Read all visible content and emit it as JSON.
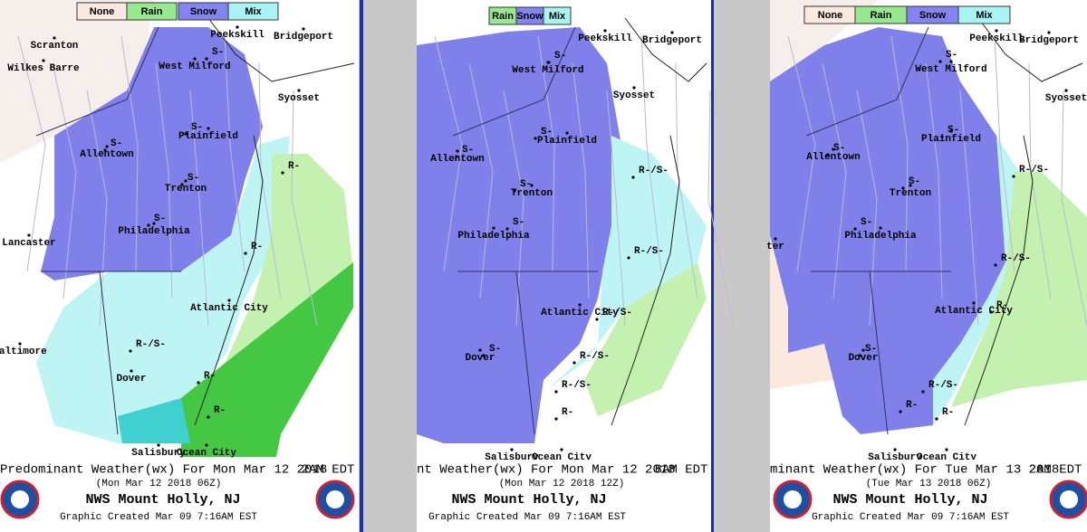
{
  "panels": [
    {
      "legend": [
        "None",
        "Rain",
        "Snow",
        "Mix"
      ],
      "cities": [
        "Scranton",
        "Wilkes Barre",
        "Peekskill",
        "Bridgeport",
        "West Milford",
        "Syosset",
        "Plainfield",
        "Allentown",
        "Trenton",
        "Lancaster",
        "Philadelphia",
        "Atlantic City",
        "Baltimore",
        "Dover",
        "Salisbury",
        "Ocean City"
      ],
      "wx_labels": [
        "S-",
        "S-",
        "S-",
        "S-",
        "S-",
        "R-",
        "R-",
        "R-/S-",
        "R-",
        "R-"
      ],
      "footer": {
        "title": "Predominant Weather(wx) For Mon Mar 12 2018",
        "time": "2AM EDT",
        "utc": "(Mon Mar 12 2018 06Z)",
        "office": "NWS Mount Holly, NJ",
        "created": "Graphic Created Mar 09  7:16AM EST"
      }
    },
    {
      "legend": [
        "Rain",
        "Snow",
        "Mix"
      ],
      "cities": [
        "Peekskill",
        "Bridgeport",
        "West Milford",
        "Syosset",
        "Plainfield",
        "Allentown",
        "Trenton",
        "Philadelphia",
        "Atlantic City",
        "Dover",
        "Salisbury",
        "Ocean City"
      ],
      "wx_labels": [
        "S-",
        "S-",
        "S-",
        "S-",
        "S-",
        "R-/S-",
        "R-/S-",
        "R-/S-",
        "S-",
        "R-/S-",
        "R-/S-",
        "R-"
      ],
      "footer": {
        "title": "nt Weather(wx) For Mon Mar 12 2018",
        "time": "8AM EDT",
        "utc": "(Mon Mar 12 2018 12Z)",
        "office": "NWS Mount Holly, NJ",
        "created": "Graphic Created Mar 09  7:16AM EST"
      }
    },
    {
      "legend": [
        "None",
        "Rain",
        "Snow",
        "Mix"
      ],
      "cities": [
        "Peekskill",
        "Bridgeport",
        "West Milford",
        "Syosset",
        "Plainfield",
        "Allentown",
        "Trenton",
        "ter",
        "Philadelphia",
        "Atlantic City",
        "Dover",
        "Salisbury",
        "Ocean City"
      ],
      "wx_labels": [
        "S-",
        "S-",
        "S-",
        "S-",
        "S-",
        "R-/S-",
        "R-/S-",
        "R-",
        "S-",
        "R-/S-",
        "R-",
        "R-"
      ],
      "footer": {
        "title": "minant Weather(wx) For Tue Mar 13 2018",
        "time": "2AM EDT",
        "utc": "(Tue Mar 13 2018 06Z)",
        "office": "NWS Mount Holly, NJ",
        "created": "Graphic Created Mar 09  7:16AM EST"
      }
    }
  ]
}
